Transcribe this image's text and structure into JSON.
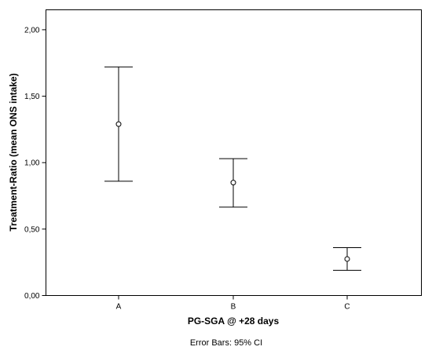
{
  "chart_data": {
    "type": "scatter",
    "subtype": "error-bar",
    "categories": [
      "A",
      "B",
      "C"
    ],
    "series": [
      {
        "means": [
          1.29,
          0.85,
          0.275
        ],
        "ci_lower": [
          0.86,
          0.665,
          0.19
        ],
        "ci_upper": [
          1.72,
          1.03,
          0.36
        ]
      }
    ],
    "xlabel": "PG-SGA @ +28 days",
    "ylabel": "Treatment-Ratio (mean ONS intake)",
    "ylim": [
      0,
      2.15
    ],
    "yticks": [
      0,
      0.5,
      1,
      1.5,
      2
    ],
    "ytick_labels": [
      "0,00",
      "0,50",
      "1,00",
      "1,50",
      "2,00"
    ],
    "grid": false,
    "legend": "none",
    "footnote": "Error Bars: 95% CI"
  }
}
